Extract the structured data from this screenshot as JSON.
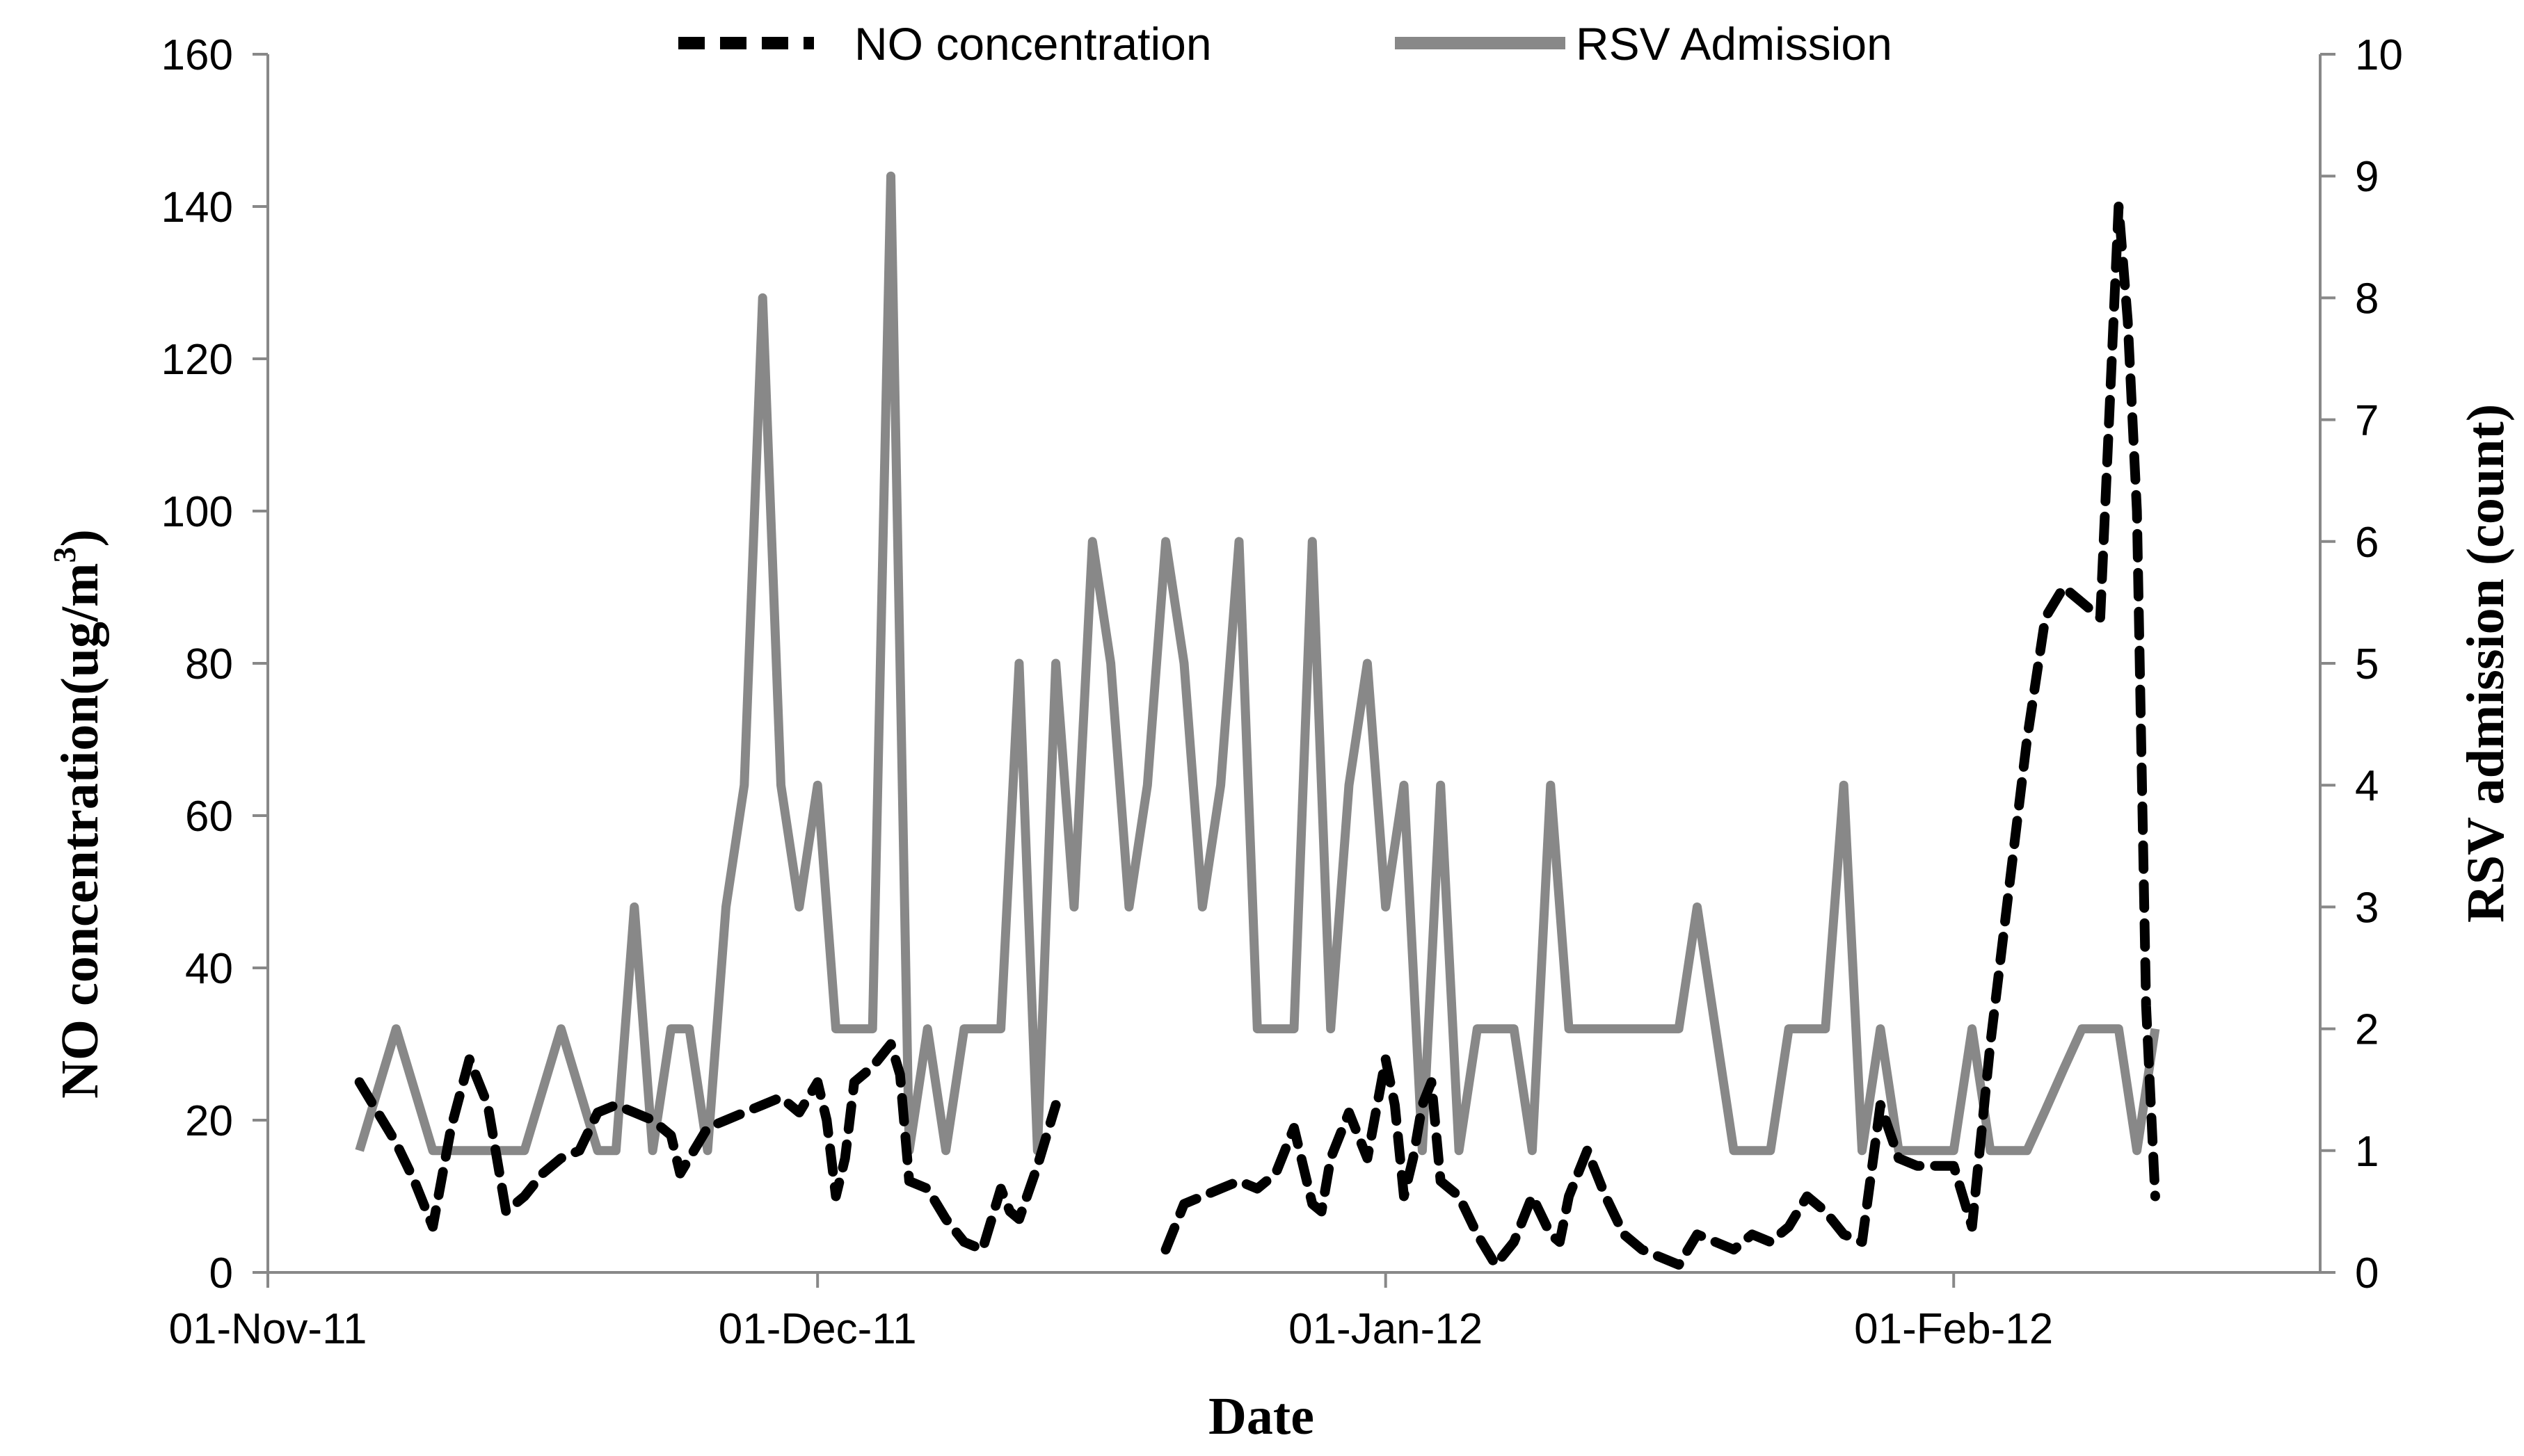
{
  "chart_data": {
    "type": "line",
    "title": "",
    "xlabel": "Date",
    "ylabel_left_main": "NO concentration(ug/m",
    "ylabel_left_sup": "3",
    "ylabel_left_close": ")",
    "ylabel_right": "RSV admission (count)",
    "x_axis": {
      "range_days": [
        0,
        112
      ],
      "ticks": [
        {
          "day": 0,
          "label": "01-Nov-11"
        },
        {
          "day": 30,
          "label": "01-Dec-11"
        },
        {
          "day": 61,
          "label": "01-Jan-12"
        },
        {
          "day": 92,
          "label": "01-Feb-12"
        }
      ]
    },
    "y_left": {
      "range": [
        0,
        160
      ],
      "ticks": [
        "0",
        "20",
        "40",
        "60",
        "80",
        "100",
        "120",
        "140",
        "160"
      ]
    },
    "y_right": {
      "range": [
        0,
        10
      ],
      "ticks": [
        "0",
        "1",
        "2",
        "3",
        "4",
        "5",
        "6",
        "7",
        "8",
        "9",
        "10"
      ]
    },
    "series": [
      {
        "name": "NO concentration",
        "axis": "left",
        "style": "dashed",
        "color": "#000000",
        "segments": [
          [
            [
              5,
              25
            ],
            [
              6,
              21
            ],
            [
              7,
              17
            ],
            [
              8,
              12
            ],
            [
              9,
              6
            ],
            [
              10,
              19
            ],
            [
              11,
              28
            ],
            [
              12,
              22
            ],
            [
              13,
              8
            ],
            [
              14,
              10
            ],
            [
              15,
              13
            ],
            [
              16,
              15
            ],
            [
              17,
              16
            ],
            [
              18,
              21
            ],
            [
              19,
              22
            ],
            [
              20,
              21
            ],
            [
              21,
              20
            ],
            [
              22,
              18
            ],
            [
              22.5,
              13
            ],
            [
              23,
              15
            ],
            [
              24,
              19
            ],
            [
              25,
              20
            ],
            [
              26,
              21
            ],
            [
              27,
              22
            ],
            [
              28,
              23
            ],
            [
              29,
              21
            ],
            [
              30,
              25
            ],
            [
              30.5,
              20
            ],
            [
              31,
              10
            ],
            [
              31.5,
              15
            ],
            [
              32,
              25
            ],
            [
              33,
              27
            ],
            [
              34,
              30
            ],
            [
              34.5,
              26
            ],
            [
              35,
              12
            ],
            [
              36,
              11
            ],
            [
              37,
              7
            ],
            [
              38,
              4
            ],
            [
              39,
              3
            ],
            [
              40,
              11
            ],
            [
              40.5,
              8
            ],
            [
              41,
              7
            ],
            [
              42,
              14
            ],
            [
              43,
              22
            ]
          ],
          [
            [
              49,
              3
            ],
            [
              50,
              9
            ],
            [
              51,
              10
            ],
            [
              52,
              11
            ],
            [
              53,
              12
            ],
            [
              54,
              11
            ],
            [
              55,
              13
            ],
            [
              56,
              19
            ],
            [
              57,
              9
            ],
            [
              57.5,
              8
            ],
            [
              58,
              15
            ],
            [
              59,
              21
            ],
            [
              60,
              15
            ],
            [
              61,
              28
            ],
            [
              61.5,
              22
            ],
            [
              62,
              10
            ],
            [
              62.5,
              15
            ],
            [
              63,
              22
            ],
            [
              63.5,
              25
            ],
            [
              64,
              12
            ],
            [
              65,
              10
            ],
            [
              66,
              5
            ],
            [
              67,
              1
            ],
            [
              68,
              4
            ],
            [
              69,
              10
            ],
            [
              70,
              5
            ],
            [
              70.5,
              4
            ],
            [
              71,
              10
            ],
            [
              72,
              16
            ],
            [
              73,
              10
            ],
            [
              74,
              5
            ],
            [
              75,
              3
            ],
            [
              76,
              2
            ],
            [
              77,
              1
            ],
            [
              78,
              5
            ],
            [
              79,
              4
            ],
            [
              80,
              3
            ],
            [
              81,
              5
            ],
            [
              82,
              4
            ],
            [
              83,
              6
            ],
            [
              84,
              10
            ],
            [
              85,
              8
            ],
            [
              86,
              5
            ],
            [
              87,
              4
            ],
            [
              88,
              22
            ],
            [
              89,
              15
            ],
            [
              90,
              14
            ],
            [
              91,
              14
            ],
            [
              92,
              14
            ],
            [
              93,
              6
            ],
            [
              94,
              30
            ],
            [
              95,
              50
            ],
            [
              96,
              70
            ],
            [
              97,
              86
            ],
            [
              98,
              90
            ],
            [
              99,
              88
            ],
            [
              100,
              86
            ],
            [
              101,
              140
            ],
            [
              101.5,
              125
            ],
            [
              102,
              100
            ],
            [
              102.5,
              35
            ],
            [
              103,
              10
            ]
          ]
        ]
      },
      {
        "name": "RSV Admission",
        "axis": "right",
        "style": "solid",
        "color": "#888888",
        "segments": [
          [
            [
              5,
              1
            ],
            [
              7,
              2
            ],
            [
              9,
              1
            ],
            [
              11,
              1
            ],
            [
              12,
              1
            ],
            [
              13,
              1
            ],
            [
              14,
              1
            ],
            [
              16,
              2
            ],
            [
              18,
              1
            ],
            [
              19,
              1
            ],
            [
              20,
              3
            ],
            [
              21,
              1
            ],
            [
              22,
              2
            ],
            [
              23,
              2
            ],
            [
              24,
              1
            ],
            [
              25,
              3
            ],
            [
              26,
              4
            ],
            [
              27,
              8
            ],
            [
              28,
              4
            ],
            [
              29,
              3
            ],
            [
              30,
              4
            ],
            [
              31,
              2
            ],
            [
              32,
              2
            ],
            [
              33,
              2
            ],
            [
              34,
              9
            ],
            [
              35,
              1
            ],
            [
              36,
              2
            ],
            [
              37,
              1
            ],
            [
              38,
              2
            ],
            [
              39,
              2
            ],
            [
              40,
              2
            ],
            [
              41,
              5
            ],
            [
              42,
              1
            ],
            [
              43,
              5
            ],
            [
              44,
              3
            ],
            [
              45,
              6
            ],
            [
              46,
              5
            ],
            [
              47,
              3
            ],
            [
              48,
              4
            ],
            [
              49,
              6
            ],
            [
              50,
              5
            ],
            [
              51,
              3
            ],
            [
              52,
              4
            ],
            [
              53,
              6
            ],
            [
              54,
              2
            ],
            [
              55,
              2
            ],
            [
              56,
              2
            ],
            [
              57,
              6
            ],
            [
              58,
              2
            ],
            [
              59,
              4
            ],
            [
              60,
              5
            ],
            [
              61,
              3
            ],
            [
              62,
              4
            ],
            [
              63,
              1
            ],
            [
              64,
              4
            ],
            [
              65,
              1
            ],
            [
              66,
              2
            ],
            [
              67,
              2
            ],
            [
              68,
              2
            ],
            [
              69,
              1
            ],
            [
              70,
              4
            ],
            [
              71,
              2
            ],
            [
              72,
              2
            ],
            [
              73,
              2
            ],
            [
              74,
              2
            ],
            [
              75,
              2
            ],
            [
              76,
              2
            ],
            [
              77,
              2
            ],
            [
              78,
              3
            ],
            [
              79,
              2
            ],
            [
              80,
              1
            ],
            [
              81,
              1
            ],
            [
              82,
              1
            ],
            [
              83,
              2
            ],
            [
              84,
              2
            ],
            [
              85,
              2
            ],
            [
              86,
              4
            ],
            [
              87,
              1
            ],
            [
              88,
              2
            ],
            [
              89,
              1
            ],
            [
              90,
              1
            ],
            [
              91,
              1
            ],
            [
              92,
              1
            ],
            [
              93,
              2
            ],
            [
              94,
              1
            ],
            [
              95,
              1
            ],
            [
              96,
              1
            ],
            [
              97,
              1.33
            ],
            [
              98,
              1.67
            ],
            [
              99,
              2
            ],
            [
              100,
              2
            ],
            [
              101,
              2
            ],
            [
              102,
              1
            ],
            [
              103,
              2
            ]
          ]
        ]
      }
    ],
    "legend": {
      "position": "top",
      "entries": [
        "NO concentration",
        "RSV Admission"
      ]
    }
  }
}
